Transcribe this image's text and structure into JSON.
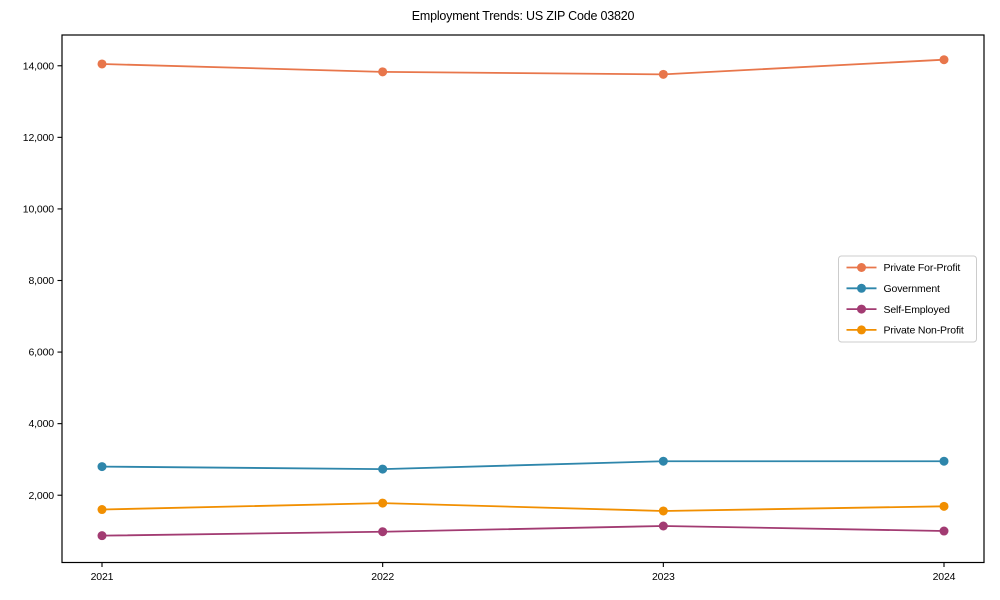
{
  "title": "Employment Trends: US ZIP Code 03820",
  "chart_data": {
    "type": "line",
    "categories": [
      "2021",
      "2022",
      "2023",
      "2024"
    ],
    "series": [
      {
        "name": "Private For-Profit",
        "color": "#E8764B",
        "values": [
          14050,
          13830,
          13760,
          14170
        ]
      },
      {
        "name": "Government",
        "color": "#2E86AB",
        "values": [
          2800,
          2730,
          2950,
          2950
        ]
      },
      {
        "name": "Self-Employed",
        "color": "#A23B72",
        "values": [
          870,
          980,
          1140,
          1000
        ]
      },
      {
        "name": "Private Non-Profit",
        "color": "#F18F01",
        "values": [
          1600,
          1780,
          1560,
          1690
        ]
      }
    ],
    "title": "Employment Trends: US ZIP Code 03820",
    "xlabel": "",
    "ylabel": "",
    "ylim": [
      120,
      14860
    ],
    "yticks": [
      2000,
      4000,
      6000,
      8000,
      10000,
      12000,
      14000
    ],
    "ytick_labels": [
      "2,000",
      "4,000",
      "6,000",
      "8,000",
      "10,000",
      "12,000",
      "14,000"
    ],
    "grid": false,
    "marker": "circle",
    "legend_position": "center right",
    "axis_color": "#000000",
    "legend_border_color": "#cccccc"
  }
}
